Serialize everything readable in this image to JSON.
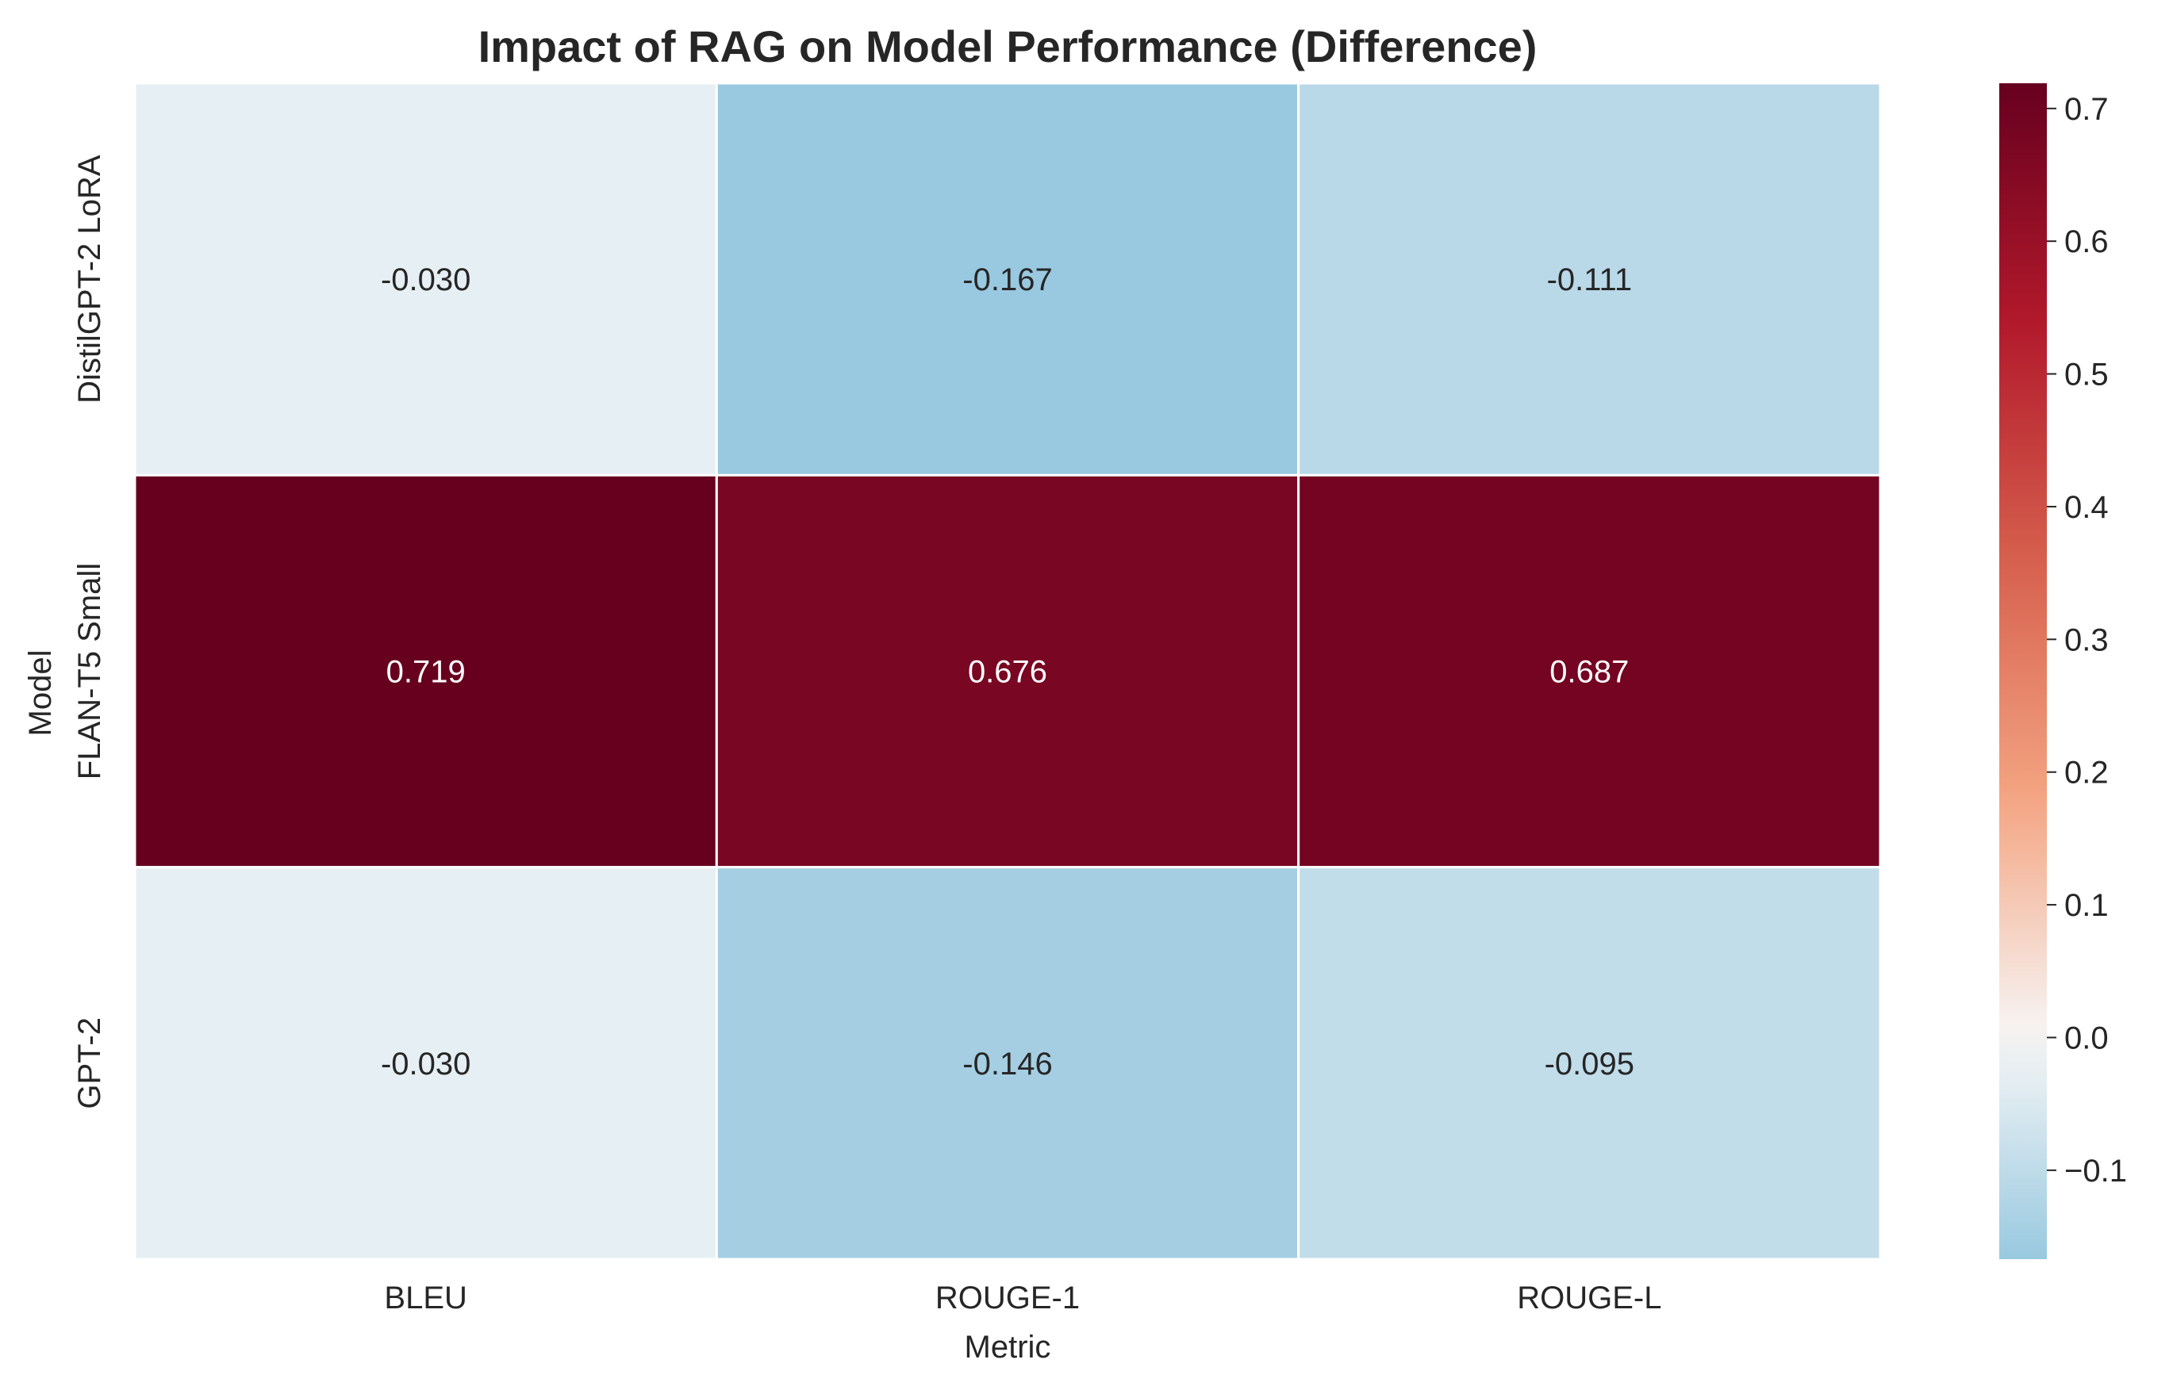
{
  "chart_data": {
    "type": "heatmap",
    "title": "Impact of RAG on Model Performance (Difference)",
    "xlabel": "Metric",
    "ylabel": "Model",
    "x_categories": [
      "BLEU",
      "ROUGE-1",
      "ROUGE-L"
    ],
    "y_categories": [
      "DistilGPT-2 LoRA",
      "FLAN-T5 Small",
      "GPT-2"
    ],
    "values": [
      [
        -0.03,
        -0.167,
        -0.111
      ],
      [
        0.719,
        0.676,
        0.687
      ],
      [
        -0.03,
        -0.146,
        -0.095
      ]
    ],
    "value_labels": [
      [
        "-0.030",
        "-0.167",
        "-0.111"
      ],
      [
        "0.719",
        "0.676",
        "0.687"
      ],
      [
        "-0.030",
        "-0.146",
        "-0.095"
      ]
    ],
    "colormap": "RdBu_r",
    "center": 0,
    "vmin": -0.167,
    "vmax": 0.719,
    "colorbar": {
      "ticks": [
        -0.1,
        0.0,
        0.1,
        0.2,
        0.3,
        0.4,
        0.5,
        0.6,
        0.7
      ],
      "tick_labels": [
        "−0.1",
        "0.0",
        "0.1",
        "0.2",
        "0.3",
        "0.4",
        "0.5",
        "0.6",
        "0.7"
      ]
    },
    "grid": false
  }
}
